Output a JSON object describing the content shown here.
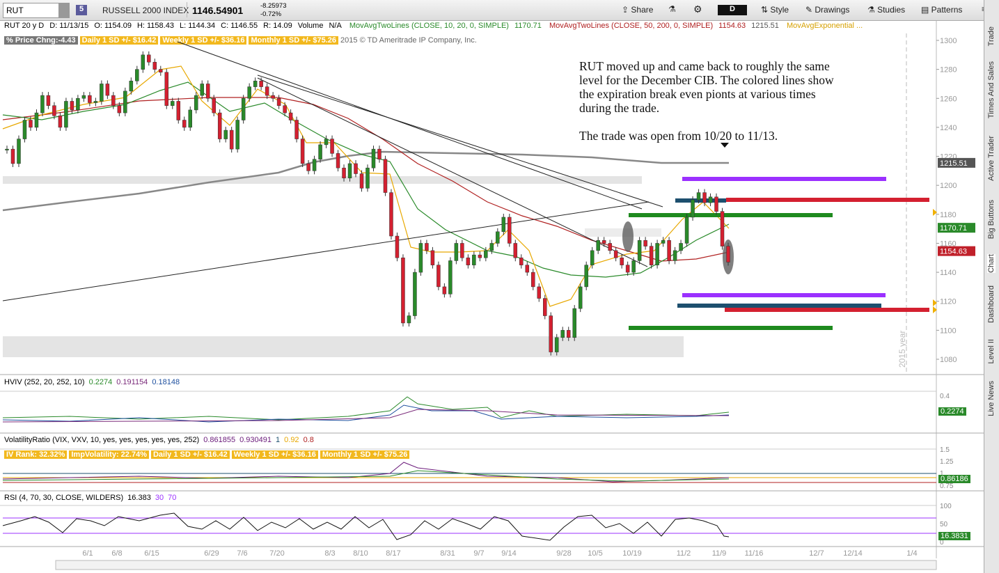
{
  "toolbar": {
    "symbol": "RUT",
    "badge": "5",
    "name": "RUSSELL 2000 INDEX",
    "last": "1146.54901",
    "change": "-8.25973",
    "change_pct": "-0.72%",
    "buttons": [
      "Share",
      "Style",
      "Drawings",
      "Studies",
      "Patterns"
    ],
    "period": "D"
  },
  "info_bar": [
    "RUT 20 y D",
    "D: 11/13/15",
    "O: 1154.09",
    "H: 1158.43",
    "L: 1144.34",
    "C: 1146.55",
    "R: 14.09",
    "Volume",
    "N/A"
  ],
  "studies_bar": [
    {
      "label": "MovAvgTwoLines (CLOSE, 10, 20, 0, SIMPLE)",
      "value": "1170.71"
    },
    {
      "label": "MovAvgTwoLines (CLOSE, 50, 200, 0, SIMPLE)",
      "value": "1154.63",
      "value2": "1215.51"
    },
    {
      "label": "MovAvgExponential ..."
    }
  ],
  "sd_bar": {
    "price_change": "% Price Chng:-4.43",
    "daily": "Daily 1 SD +/- $16.42",
    "weekly": "Weekly 1 SD +/- $36.16",
    "monthly": "Monthly 1 SD +/- $75.26",
    "copyright": "2015 © TD Ameritrade IP Company, Inc."
  },
  "main_chart": {
    "annotation": [
      "RUT moved up and came back to roughly the same",
      "level for the December CIB.  The colored lines show",
      "the expiration break even pionts at various times",
      "during the trade.",
      "",
      "The trade was open from 10/20 to 11/13."
    ],
    "price_ticks": [
      1080,
      1100,
      1120,
      1140,
      1160,
      1180,
      1200,
      1220,
      1240,
      1260,
      1280,
      1300
    ],
    "price_range": [
      1080,
      1300
    ],
    "price_labels": [
      {
        "value": 1215.51,
        "color": "#555555"
      },
      {
        "value": 1170.71,
        "color": "#2a8a2a"
      },
      {
        "value": 1154.63,
        "color": "#c0202a"
      }
    ],
    "year_label": "2015 year",
    "closes": [
      1225,
      1215,
      1232,
      1245,
      1240,
      1250,
      1262,
      1255,
      1248,
      1240,
      1258,
      1252,
      1260,
      1262,
      1257,
      1258,
      1270,
      1262,
      1255,
      1250,
      1265,
      1272,
      1280,
      1290,
      1285,
      1280,
      1278,
      1255,
      1258,
      1245,
      1240,
      1252,
      1262,
      1270,
      1260,
      1250,
      1232,
      1238,
      1225,
      1245,
      1260,
      1268,
      1272,
      1268,
      1262,
      1260,
      1255,
      1250,
      1245,
      1232,
      1215,
      1210,
      1218,
      1228,
      1232,
      1222,
      1212,
      1205,
      1215,
      1208,
      1198,
      1212,
      1225,
      1218,
      1195,
      1165,
      1150,
      1105,
      1110,
      1140,
      1160,
      1155,
      1145,
      1130,
      1125,
      1148,
      1160,
      1150,
      1145,
      1152,
      1150,
      1155,
      1160,
      1168,
      1178,
      1160,
      1150,
      1145,
      1140,
      1130,
      1122,
      1110,
      1085,
      1095,
      1100,
      1095,
      1115,
      1130,
      1145,
      1155,
      1162,
      1160,
      1155,
      1150,
      1145,
      1140,
      1148,
      1162,
      1158,
      1145,
      1160,
      1162,
      1148,
      1155,
      1160,
      1178,
      1190,
      1195,
      1188,
      1192,
      1182,
      1158,
      1147
    ],
    "dates": [
      "6/1",
      "6/8",
      "6/15",
      "6/29",
      "7/6",
      "7/20",
      "8/3",
      "8/10",
      "8/17",
      "8/31",
      "9/7",
      "9/14",
      "9/28",
      "10/5",
      "10/19",
      "11/2",
      "11/9",
      "11/16",
      "12/7",
      "12/14",
      "1/4"
    ]
  },
  "studies": {
    "hviv": {
      "header": [
        "HVIV (252, 20, 252, 10)",
        "0.2274",
        "0.191154",
        "0.18148"
      ],
      "axis": [
        "0.4"
      ],
      "value": "0.2274"
    },
    "vr": {
      "header": [
        "VolatilityRatio (VIX, VXV, 10, yes, yes, yes, yes, yes, 252)",
        "0.861855",
        "0.930491",
        "1",
        "0.92",
        "0.8"
      ],
      "badges": [
        "IV Rank: 32.32%",
        "ImpVolatility: 22.74%",
        "Daily 1 SD +/- $16.42",
        "Weekly 1 SD +/- $36.16",
        "Monthly 1 SD +/- $75.26"
      ],
      "axis": [
        "1.5",
        "1.25",
        "1",
        "0.75"
      ],
      "value": "0.86186"
    },
    "rsi": {
      "header": [
        "RSI (4, 70, 30, CLOSE, WILDERS)",
        "16.383",
        "30",
        "70"
      ],
      "axis": [
        "100",
        "50",
        "0"
      ],
      "value": "16.3831"
    }
  },
  "side_tabs": [
    "Trade",
    "Times And Sales",
    "Active Trader",
    "Big Buttons",
    "Chart",
    "Dashboard",
    "Level II",
    "Live News"
  ]
}
